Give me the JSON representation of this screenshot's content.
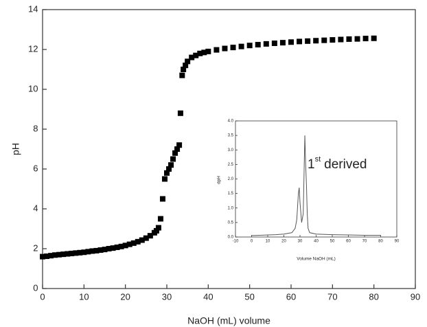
{
  "chart_data": [
    {
      "type": "scatter",
      "xlabel": "NaOH (mL) volume",
      "ylabel": "pH",
      "color": "#000000",
      "x": [
        0,
        1,
        2,
        3,
        4,
        5,
        6,
        7,
        8,
        9,
        10,
        11,
        12,
        13,
        14,
        15,
        16,
        17,
        18,
        19,
        20,
        21,
        22,
        23,
        24,
        25,
        26,
        27,
        27.5,
        28,
        28.5,
        29,
        29.5,
        30,
        30.5,
        31,
        31.5,
        32,
        32.5,
        33,
        33.3,
        33.7,
        34,
        34.5,
        35,
        36,
        37,
        38,
        39,
        40,
        42,
        44,
        46,
        48,
        50,
        52,
        54,
        56,
        58,
        60,
        62,
        64,
        66,
        68,
        70,
        72,
        74,
        76,
        78,
        80
      ],
      "y": [
        1.6,
        1.62,
        1.65,
        1.68,
        1.7,
        1.72,
        1.74,
        1.76,
        1.78,
        1.8,
        1.82,
        1.85,
        1.88,
        1.9,
        1.93,
        1.96,
        2.0,
        2.03,
        2.07,
        2.11,
        2.16,
        2.22,
        2.28,
        2.35,
        2.43,
        2.53,
        2.65,
        2.8,
        2.9,
        3.05,
        3.5,
        4.5,
        5.5,
        5.8,
        6.0,
        6.2,
        6.5,
        6.8,
        7.0,
        7.2,
        8.8,
        10.7,
        11.0,
        11.2,
        11.4,
        11.6,
        11.7,
        11.8,
        11.85,
        11.9,
        11.98,
        12.05,
        12.1,
        12.15,
        12.2,
        12.24,
        12.28,
        12.31,
        12.34,
        12.37,
        12.4,
        12.42,
        12.44,
        12.46,
        12.48,
        12.5,
        12.52,
        12.53,
        12.55,
        12.56
      ],
      "xlim": [
        0,
        90
      ],
      "xticks": [
        0,
        10,
        20,
        30,
        40,
        50,
        60,
        70,
        80,
        90
      ],
      "ylim": [
        0,
        14
      ],
      "yticks": [
        0,
        2,
        4,
        6,
        8,
        10,
        12,
        14
      ]
    },
    {
      "type": "line",
      "xlabel": "Volume NaOH (mL)",
      "ylabel": "dpH",
      "color": "#555555",
      "annotation": {
        "number": "1",
        "suffix": "st",
        "text": "derived"
      },
      "x": [
        0,
        5,
        10,
        15,
        20,
        25,
        27,
        28,
        29,
        29.5,
        30,
        31,
        32,
        33,
        33.5,
        34,
        34.5,
        35,
        36,
        40,
        50,
        60,
        70,
        80
      ],
      "y": [
        0.05,
        0.06,
        0.07,
        0.08,
        0.1,
        0.15,
        0.3,
        0.6,
        1.5,
        1.7,
        1.2,
        0.5,
        0.8,
        3.5,
        2.5,
        1.8,
        0.8,
        0.3,
        0.15,
        0.1,
        0.08,
        0.07,
        0.06,
        0.06
      ],
      "xlim": [
        -10,
        90
      ],
      "xticks": [
        -10,
        0,
        10,
        20,
        30,
        40,
        50,
        60,
        70,
        80,
        90
      ],
      "ylim": [
        0,
        4
      ],
      "yticks": [
        {
          "value": 0,
          "label": "0.0"
        },
        {
          "value": 0.5,
          "label": "0.5"
        },
        {
          "value": 1,
          "label": "1.0"
        },
        {
          "value": 1.5,
          "label": "1.5"
        },
        {
          "value": 2,
          "label": "2.0"
        },
        {
          "value": 2.5,
          "label": "2.5"
        },
        {
          "value": 3,
          "label": "3.0"
        },
        {
          "value": 3.5,
          "label": "3.5"
        },
        {
          "value": 4,
          "label": "4.0"
        }
      ]
    }
  ]
}
